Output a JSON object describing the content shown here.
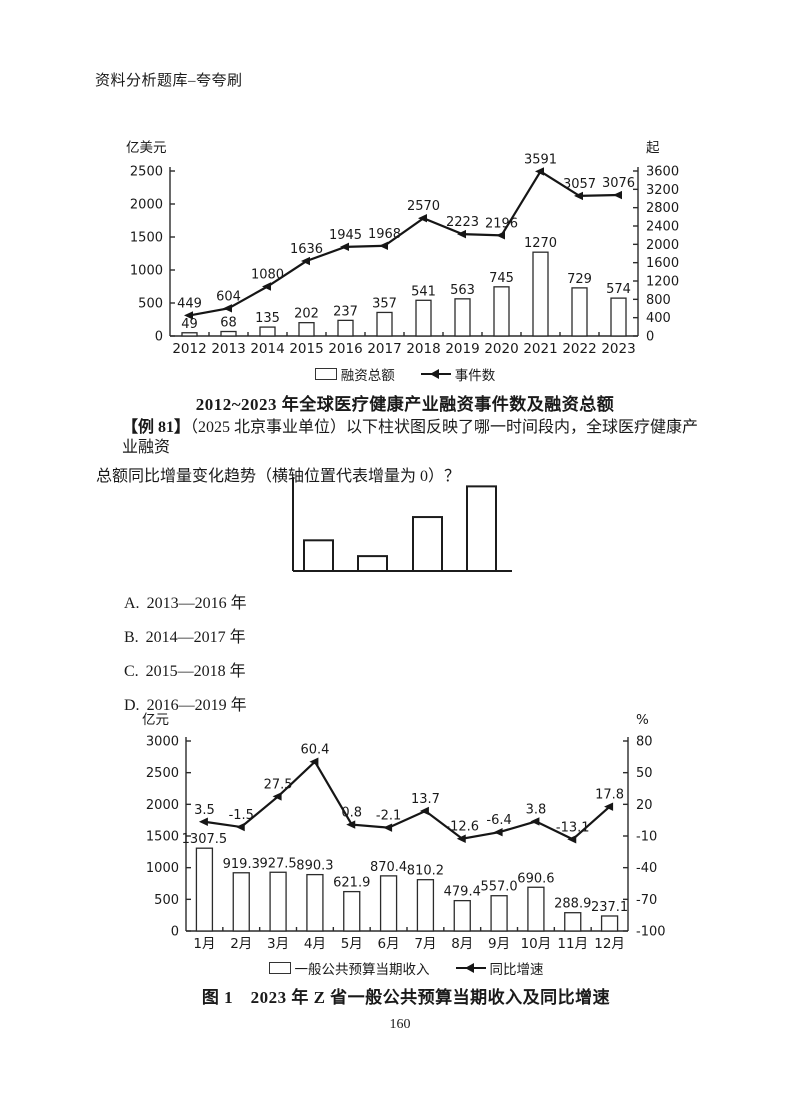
{
  "page": {
    "header": "资料分析题库–夸夸刷",
    "page_number": "160"
  },
  "question": {
    "prefix": "【例 81】",
    "line1_rest": "（2025 北京事业单位）以下柱状图反映了哪一时间段内，全球医疗健康产业融资",
    "line2": "总额同比增量变化趋势（横轴位置代表增量为 0）？",
    "options": [
      {
        "label": "A.",
        "text": "2013—2016 年"
      },
      {
        "label": "B.",
        "text": "2014—2017 年"
      },
      {
        "label": "C.",
        "text": "2015—2018 年"
      },
      {
        "label": "D.",
        "text": "2016—2019 年"
      }
    ]
  },
  "colors": {
    "ink": "#1a1a1a",
    "axis": "#2b2b2b",
    "bar_fill": "#ffffff"
  },
  "chart_data": [
    {
      "type": "bar+line",
      "title": "2012~2023 年全球医疗健康产业融资事件数及融资总额",
      "categories": [
        "2012",
        "2013",
        "2014",
        "2015",
        "2016",
        "2017",
        "2018",
        "2019",
        "2020",
        "2021",
        "2022",
        "2023"
      ],
      "left_axis": {
        "label": "亿美元",
        "min": 0,
        "max": 2500,
        "step": 500
      },
      "right_axis": {
        "label": "起",
        "min": 0,
        "max": 3600,
        "step": 400
      },
      "legend_position": "bottom",
      "grid": false,
      "series": [
        {
          "name": "融资总额",
          "type": "bar",
          "axis": "left",
          "values": [
            49,
            68,
            135,
            202,
            237,
            357,
            541,
            563,
            745,
            1270,
            729,
            574
          ],
          "labels": [
            "49",
            "68",
            "135",
            "202",
            "237",
            "357",
            "541",
            "563",
            "745",
            "1270",
            "729",
            "574"
          ]
        },
        {
          "name": "事件数",
          "type": "line",
          "axis": "right",
          "values": [
            449,
            604,
            1080,
            1636,
            1945,
            1968,
            2570,
            2223,
            2196,
            3591,
            3057,
            3076
          ],
          "labels": [
            "449",
            "604",
            "1080",
            "1636",
            "1945",
            "1968",
            "2570",
            "2223",
            "2196",
            "3591",
            "3057",
            "3076"
          ]
        }
      ]
    },
    {
      "type": "bar",
      "title": "",
      "categories": [
        "",
        "",
        "",
        ""
      ],
      "values_relative": [
        0.33,
        0.16,
        0.58,
        0.91
      ],
      "grid": false,
      "axes_unlabeled": true
    },
    {
      "type": "bar+line",
      "title": "图 1　2023 年 Z 省一般公共预算当期收入及同比增速",
      "categories": [
        "1月",
        "2月",
        "3月",
        "4月",
        "5月",
        "6月",
        "7月",
        "8月",
        "9月",
        "10月",
        "11月",
        "12月"
      ],
      "left_axis": {
        "label": "亿元",
        "min": 0,
        "max": 3000,
        "step": 500
      },
      "right_axis": {
        "label": "%",
        "min": -100,
        "max": 80,
        "step": 30
      },
      "legend_position": "bottom",
      "grid": false,
      "series": [
        {
          "name": "一般公共预算当期收入",
          "type": "bar",
          "axis": "left",
          "values": [
            1307.5,
            919.3,
            927.5,
            890.3,
            621.9,
            870.4,
            810.2,
            479.4,
            557.0,
            690.6,
            288.9,
            237.1
          ],
          "labels": [
            "1307.5",
            "919.3",
            "927.5",
            "890.3",
            "621.9",
            "870.4",
            "810.2",
            "479.4",
            "557.0",
            "690.6",
            "288.9",
            "237.1"
          ]
        },
        {
          "name": "同比增速",
          "type": "line",
          "axis": "right",
          "values": [
            3.5,
            -1.5,
            27.5,
            60.4,
            0.8,
            -2.1,
            13.7,
            -12.6,
            -6.4,
            3.8,
            -13.1,
            17.8
          ],
          "labels": [
            "3.5",
            "-1.5",
            "27.5",
            "60.4",
            "0.8",
            "-2.1",
            "13.7",
            "-12.6",
            "-6.4",
            "3.8",
            "-13.1",
            "17.8"
          ]
        }
      ]
    }
  ]
}
